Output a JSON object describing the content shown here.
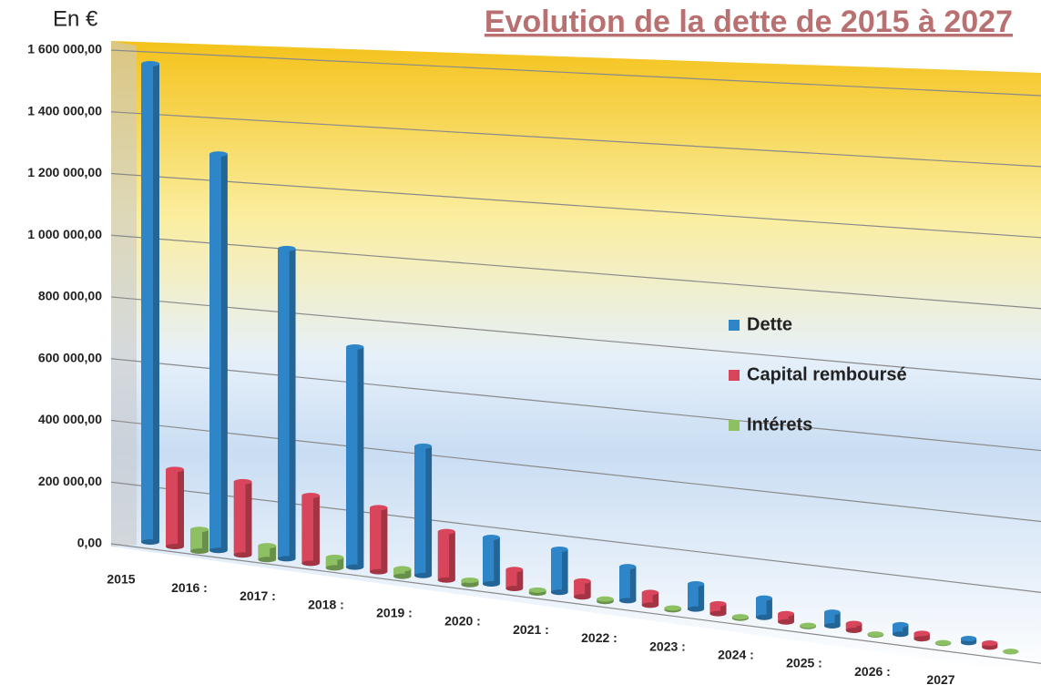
{
  "chart_data": {
    "type": "bar3d",
    "title": "Evolution de la dette de 2015 à 2027",
    "y_label": "En €",
    "categories": [
      "2015",
      "2016 :",
      "2017 :",
      "2018 :",
      "2019 :",
      "2020 :",
      "2021 :",
      "2022 :",
      "2023 :",
      "2024 :",
      "2025 :",
      "2026 :",
      "2027"
    ],
    "series": [
      {
        "name": "Dette",
        "color": "#2e86c8",
        "values": [
          1550000,
          1300000,
          1030000,
          740000,
          440000,
          160000,
          150000,
          120000,
          90000,
          70000,
          50000,
          35000,
          15000
        ]
      },
      {
        "name": "Capital remboursé",
        "color": "#d9455a",
        "values": [
          250000,
          240000,
          225000,
          215000,
          165000,
          65000,
          55000,
          45000,
          35000,
          30000,
          25000,
          20000,
          15000
        ]
      },
      {
        "name": "Intérets",
        "color": "#8cc063",
        "values": [
          70000,
          45000,
          35000,
          25000,
          15000,
          10000,
          8000,
          6000,
          5000,
          4000,
          3000,
          2000,
          1000
        ]
      }
    ],
    "ylim": [
      0,
      1600000
    ],
    "yticks": [
      {
        "value": 0,
        "label": "0,00"
      },
      {
        "value": 200000,
        "label": "200 000,00"
      },
      {
        "value": 400000,
        "label": "400 000,00"
      },
      {
        "value": 600000,
        "label": "600 000,00"
      },
      {
        "value": 800000,
        "label": "800 000,00"
      },
      {
        "value": 1000000,
        "label": "1 000 000,00"
      },
      {
        "value": 1200000,
        "label": "1 200 000,00"
      },
      {
        "value": 1400000,
        "label": "1 400 000,00"
      },
      {
        "value": 1600000,
        "label": "1 600 000,00"
      }
    ],
    "grid": true,
    "legend": "right"
  }
}
